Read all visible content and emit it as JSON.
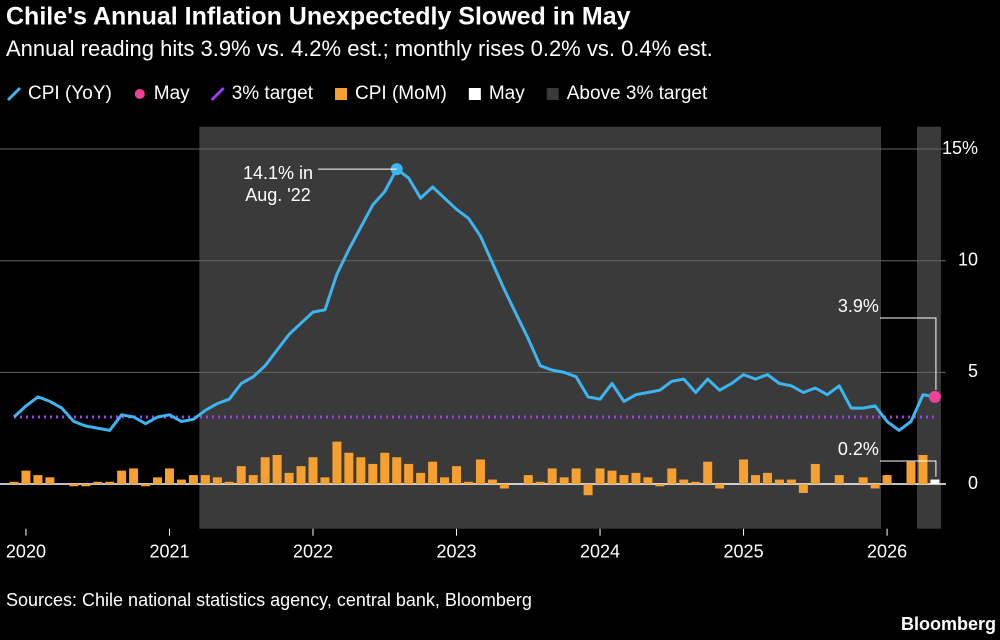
{
  "chart_data": {
    "type": "line_bar",
    "title": "Chile's Annual Inflation Unexpectedly Slowed in May",
    "subtitle": "Annual reading hits 3.9% vs. 4.2% est.; monthly rises 0.2% vs. 0.4% est.",
    "source": "Sources: Chile national statistics agency, central bank, Bloomberg",
    "brand": "Bloomberg",
    "annotations": [
      {
        "text": [
          "14.1% in",
          "Aug. '22"
        ]
      }
    ],
    "categories": [
      null,
      "2020",
      null,
      null,
      null,
      null,
      null,
      null,
      null,
      null,
      null,
      null,
      null,
      "2021",
      null,
      null,
      null,
      null,
      null,
      null,
      null,
      null,
      null,
      null,
      null,
      "2022",
      null,
      null,
      null,
      null,
      null,
      null,
      null,
      null,
      null,
      null,
      null,
      "2023",
      null,
      null,
      null,
      null,
      null,
      null,
      null,
      null,
      null,
      null,
      null,
      "2024",
      null,
      null,
      null,
      null,
      null,
      null,
      null,
      null,
      null,
      null,
      null,
      "2025",
      null,
      null,
      null,
      null,
      null,
      null,
      null,
      null,
      null,
      null,
      null,
      "2026",
      null,
      null,
      null,
      null
    ],
    "ylim": [
      -2,
      16
    ],
    "yticks": [
      0,
      5,
      10,
      {
        "value": 15,
        "label": "15%"
      }
    ],
    "grid": true,
    "legend": "top-left",
    "series": [
      {
        "name": "CPI (YoY)",
        "color": "#3db5f0",
        "style": "line",
        "values": [
          3.0,
          3.5,
          3.9,
          3.7,
          3.4,
          2.8,
          2.6,
          2.5,
          2.4,
          3.1,
          3.0,
          2.7,
          3.0,
          3.1,
          2.8,
          2.9,
          3.3,
          3.6,
          3.8,
          4.5,
          4.8,
          5.3,
          6.0,
          6.7,
          7.2,
          7.7,
          7.8,
          9.4,
          10.5,
          11.5,
          12.5,
          13.1,
          14.1,
          13.7,
          12.8,
          13.3,
          12.8,
          12.3,
          11.9,
          11.1,
          9.9,
          8.7,
          7.6,
          6.5,
          5.3,
          5.1,
          5.0,
          4.8,
          3.9,
          3.8,
          4.5,
          3.7,
          4.0,
          4.1,
          4.2,
          4.6,
          4.7,
          4.1,
          4.7,
          4.2,
          4.5,
          4.9,
          4.7,
          4.9,
          4.5,
          4.4,
          4.1,
          4.3,
          4.0,
          4.4,
          3.4,
          3.4,
          3.5,
          2.8,
          2.4,
          2.8,
          4.0,
          3.9
        ]
      },
      {
        "name": "May",
        "color": "#f0409a",
        "style": "point",
        "values": [
          null,
          null,
          null,
          null,
          null,
          null,
          null,
          null,
          null,
          null,
          null,
          null,
          null,
          null,
          null,
          null,
          null,
          null,
          null,
          null,
          null,
          null,
          null,
          null,
          null,
          null,
          null,
          null,
          null,
          null,
          null,
          null,
          null,
          null,
          null,
          null,
          null,
          null,
          null,
          null,
          null,
          null,
          null,
          null,
          null,
          null,
          null,
          null,
          null,
          null,
          null,
          null,
          null,
          null,
          null,
          null,
          null,
          null,
          null,
          null,
          null,
          null,
          null,
          null,
          null,
          null,
          null,
          null,
          null,
          null,
          null,
          null,
          null,
          null,
          null,
          null,
          null,
          3.9
        ],
        "value_labels": [
          null,
          null,
          null,
          null,
          null,
          null,
          null,
          null,
          null,
          null,
          null,
          null,
          null,
          null,
          null,
          null,
          null,
          null,
          null,
          null,
          null,
          null,
          null,
          null,
          null,
          null,
          null,
          null,
          null,
          null,
          null,
          null,
          null,
          null,
          null,
          null,
          null,
          null,
          null,
          null,
          null,
          null,
          null,
          null,
          null,
          null,
          null,
          null,
          null,
          null,
          null,
          null,
          null,
          null,
          null,
          null,
          null,
          null,
          null,
          null,
          null,
          null,
          null,
          null,
          null,
          null,
          null,
          null,
          null,
          null,
          null,
          null,
          null,
          null,
          null,
          null,
          null,
          "3.9%"
        ]
      },
      {
        "name": "3% target",
        "color": "#9b3ff0",
        "style": "hline",
        "value": 3
      },
      {
        "name": "CPI (MoM)",
        "color": "#f5a030",
        "style": "bar",
        "values": [
          0.1,
          0.6,
          0.4,
          0.3,
          0.0,
          -0.1,
          -0.1,
          0.1,
          0.1,
          0.6,
          0.7,
          -0.1,
          0.3,
          0.7,
          0.2,
          0.4,
          0.4,
          0.3,
          0.1,
          0.8,
          0.4,
          1.2,
          1.3,
          0.5,
          0.8,
          1.2,
          0.3,
          1.9,
          1.4,
          1.2,
          0.9,
          1.4,
          1.2,
          0.9,
          0.5,
          1.0,
          0.3,
          0.8,
          0.1,
          1.1,
          0.2,
          -0.2,
          0.0,
          0.4,
          0.1,
          0.7,
          0.3,
          0.7,
          -0.5,
          0.7,
          0.6,
          0.4,
          0.5,
          0.3,
          -0.1,
          0.7,
          0.2,
          0.1,
          1.0,
          -0.2,
          0.0,
          1.1,
          0.4,
          0.5,
          0.2,
          0.2,
          -0.4,
          0.9,
          0.0,
          0.4,
          0.0,
          0.3,
          -0.2,
          0.4,
          0.0,
          1.0,
          1.3,
          null
        ]
      },
      {
        "name": "May",
        "color": "#ffffff",
        "style": "bar",
        "values": [
          null,
          null,
          null,
          null,
          null,
          null,
          null,
          null,
          null,
          null,
          null,
          null,
          null,
          null,
          null,
          null,
          null,
          null,
          null,
          null,
          null,
          null,
          null,
          null,
          null,
          null,
          null,
          null,
          null,
          null,
          null,
          null,
          null,
          null,
          null,
          null,
          null,
          null,
          null,
          null,
          null,
          null,
          null,
          null,
          null,
          null,
          null,
          null,
          null,
          null,
          null,
          null,
          null,
          null,
          null,
          null,
          null,
          null,
          null,
          null,
          null,
          null,
          null,
          null,
          null,
          null,
          null,
          null,
          null,
          null,
          null,
          null,
          null,
          null,
          null,
          null,
          null,
          0.2
        ],
        "value_labels": [
          null,
          null,
          null,
          null,
          null,
          null,
          null,
          null,
          null,
          null,
          null,
          null,
          null,
          null,
          null,
          null,
          null,
          null,
          null,
          null,
          null,
          null,
          null,
          null,
          null,
          null,
          null,
          null,
          null,
          null,
          null,
          null,
          null,
          null,
          null,
          null,
          null,
          null,
          null,
          null,
          null,
          null,
          null,
          null,
          null,
          null,
          null,
          null,
          null,
          null,
          null,
          null,
          null,
          null,
          null,
          null,
          null,
          null,
          null,
          null,
          null,
          null,
          null,
          null,
          null,
          null,
          null,
          null,
          null,
          null,
          null,
          null,
          null,
          null,
          null,
          null,
          null,
          "0.2%"
        ]
      },
      {
        "name": "Above 3% target",
        "color": "#3a3a3a",
        "style": "span",
        "ranges": [
          [
            16,
            72
          ],
          [
            76,
            77
          ]
        ]
      }
    ]
  }
}
